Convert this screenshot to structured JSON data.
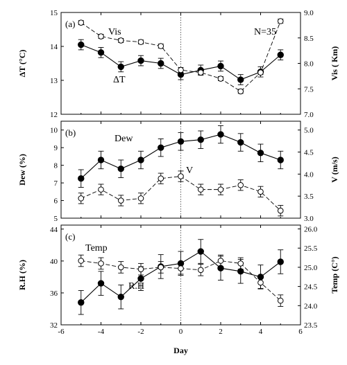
{
  "chart_data": [
    {
      "type": "line",
      "panel_label": "(a)",
      "x": [
        -5,
        -4,
        -3,
        -2,
        -1,
        0,
        1,
        2,
        3,
        4,
        5
      ],
      "xlim": [
        -6,
        6
      ],
      "x_ticks": [
        "-6",
        "-4",
        "-2",
        "0",
        "2",
        "4",
        "6"
      ],
      "ylabel_left": "ΔT (°C)",
      "ylim_left": [
        12,
        15
      ],
      "y_ticks_left": [
        "12",
        "13",
        "14",
        "15"
      ],
      "ylabel_right": "Vis ( Km)",
      "ylim_right": [
        7.0,
        9.0
      ],
      "y_ticks_right": [
        "7.0",
        "7.5",
        "8.0",
        "8.5",
        "9.0"
      ],
      "series": [
        {
          "name": "ΔT",
          "axis": "left",
          "marker": "filled-circle",
          "line": "solid",
          "values": [
            14.05,
            13.82,
            13.4,
            13.58,
            13.5,
            13.17,
            13.3,
            13.42,
            13.02,
            13.25,
            13.75
          ],
          "errors": [
            0.15,
            0.15,
            0.15,
            0.15,
            0.15,
            0.15,
            0.15,
            0.15,
            0.15,
            0.15,
            0.15
          ]
        },
        {
          "name": "Vis",
          "axis": "right",
          "marker": "open-circle",
          "line": "dashed",
          "values": [
            8.8,
            8.53,
            8.45,
            8.42,
            8.34,
            7.87,
            7.82,
            7.7,
            7.45,
            7.82,
            8.83
          ],
          "errors": [
            0.04,
            0.04,
            0.04,
            0.04,
            0.04,
            0.05,
            0.04,
            0.04,
            0.04,
            0.04,
            0.04
          ]
        }
      ],
      "annotations": [
        "Vis",
        "ΔT",
        "N=35"
      ]
    },
    {
      "type": "line",
      "panel_label": "(b)",
      "x": [
        -5,
        -4,
        -3,
        -2,
        -1,
        0,
        1,
        2,
        3,
        4,
        5
      ],
      "xlim": [
        -6,
        6
      ],
      "x_ticks": [
        "-6",
        "-4",
        "-2",
        "0",
        "2",
        "4",
        "6"
      ],
      "ylabel_left": "Dew (%)",
      "ylim_left": [
        5,
        10.5
      ],
      "y_ticks_left": [
        "5",
        "6",
        "7",
        "8",
        "9",
        "10"
      ],
      "ylabel_right": "V (m/s)",
      "ylim_right": [
        3.0,
        5.2
      ],
      "y_ticks_right": [
        "3.0",
        "3.5",
        "4.0",
        "4.5",
        "5.0"
      ],
      "series": [
        {
          "name": "Dew",
          "axis": "left",
          "marker": "filled-circle",
          "line": "solid",
          "values": [
            7.25,
            8.3,
            7.8,
            8.3,
            9.0,
            9.35,
            9.45,
            9.75,
            9.3,
            8.7,
            8.3
          ],
          "errors": [
            0.5,
            0.5,
            0.5,
            0.5,
            0.5,
            0.5,
            0.5,
            0.5,
            0.5,
            0.5,
            0.5
          ]
        },
        {
          "name": "V",
          "axis": "right",
          "marker": "open-circle",
          "line": "dashed",
          "values": [
            3.45,
            3.65,
            3.4,
            3.45,
            3.9,
            3.95,
            3.65,
            3.65,
            3.75,
            3.6,
            3.17
          ],
          "errors": [
            0.12,
            0.12,
            0.12,
            0.12,
            0.12,
            0.12,
            0.12,
            0.12,
            0.12,
            0.12,
            0.12
          ]
        }
      ],
      "annotations": [
        "Dew",
        "V"
      ]
    },
    {
      "type": "line",
      "panel_label": "(c)",
      "x": [
        -5,
        -4,
        -3,
        -2,
        -1,
        0,
        1,
        2,
        3,
        4,
        5
      ],
      "xlim": [
        -6,
        6
      ],
      "x_ticks": [
        "-6",
        "-4",
        "-2",
        "0",
        "2",
        "4",
        "6"
      ],
      "xlabel": "Day",
      "ylabel_left": "R.H (%)",
      "ylim_left": [
        32,
        44.5
      ],
      "y_ticks_left": [
        "32",
        "36",
        "40",
        "44"
      ],
      "ylabel_right": "Temp (C°)",
      "ylim_right": [
        23.5,
        26.1
      ],
      "y_ticks_right": [
        "23.5",
        "24.0",
        "24.5",
        "25.0",
        "25.5",
        "26.0"
      ],
      "series": [
        {
          "name": "R.H",
          "axis": "left",
          "marker": "filled-circle",
          "line": "solid",
          "values": [
            34.8,
            37.2,
            35.5,
            37.8,
            39.3,
            39.7,
            41.2,
            39.1,
            38.7,
            38.0,
            39.9
          ],
          "errors": [
            1.5,
            1.5,
            1.5,
            1.5,
            1.5,
            1.5,
            1.5,
            1.5,
            1.5,
            1.5,
            1.5
          ]
        },
        {
          "name": "Temp",
          "axis": "right",
          "marker": "open-circle",
          "line": "dashed",
          "values": [
            25.17,
            25.1,
            25.0,
            24.95,
            25.0,
            24.97,
            24.93,
            25.17,
            25.1,
            24.6,
            24.13
          ],
          "errors": [
            0.15,
            0.15,
            0.15,
            0.15,
            0.15,
            0.15,
            0.15,
            0.15,
            0.15,
            0.15,
            0.15
          ]
        }
      ],
      "annotations": [
        "Temp",
        "R.H"
      ]
    }
  ]
}
